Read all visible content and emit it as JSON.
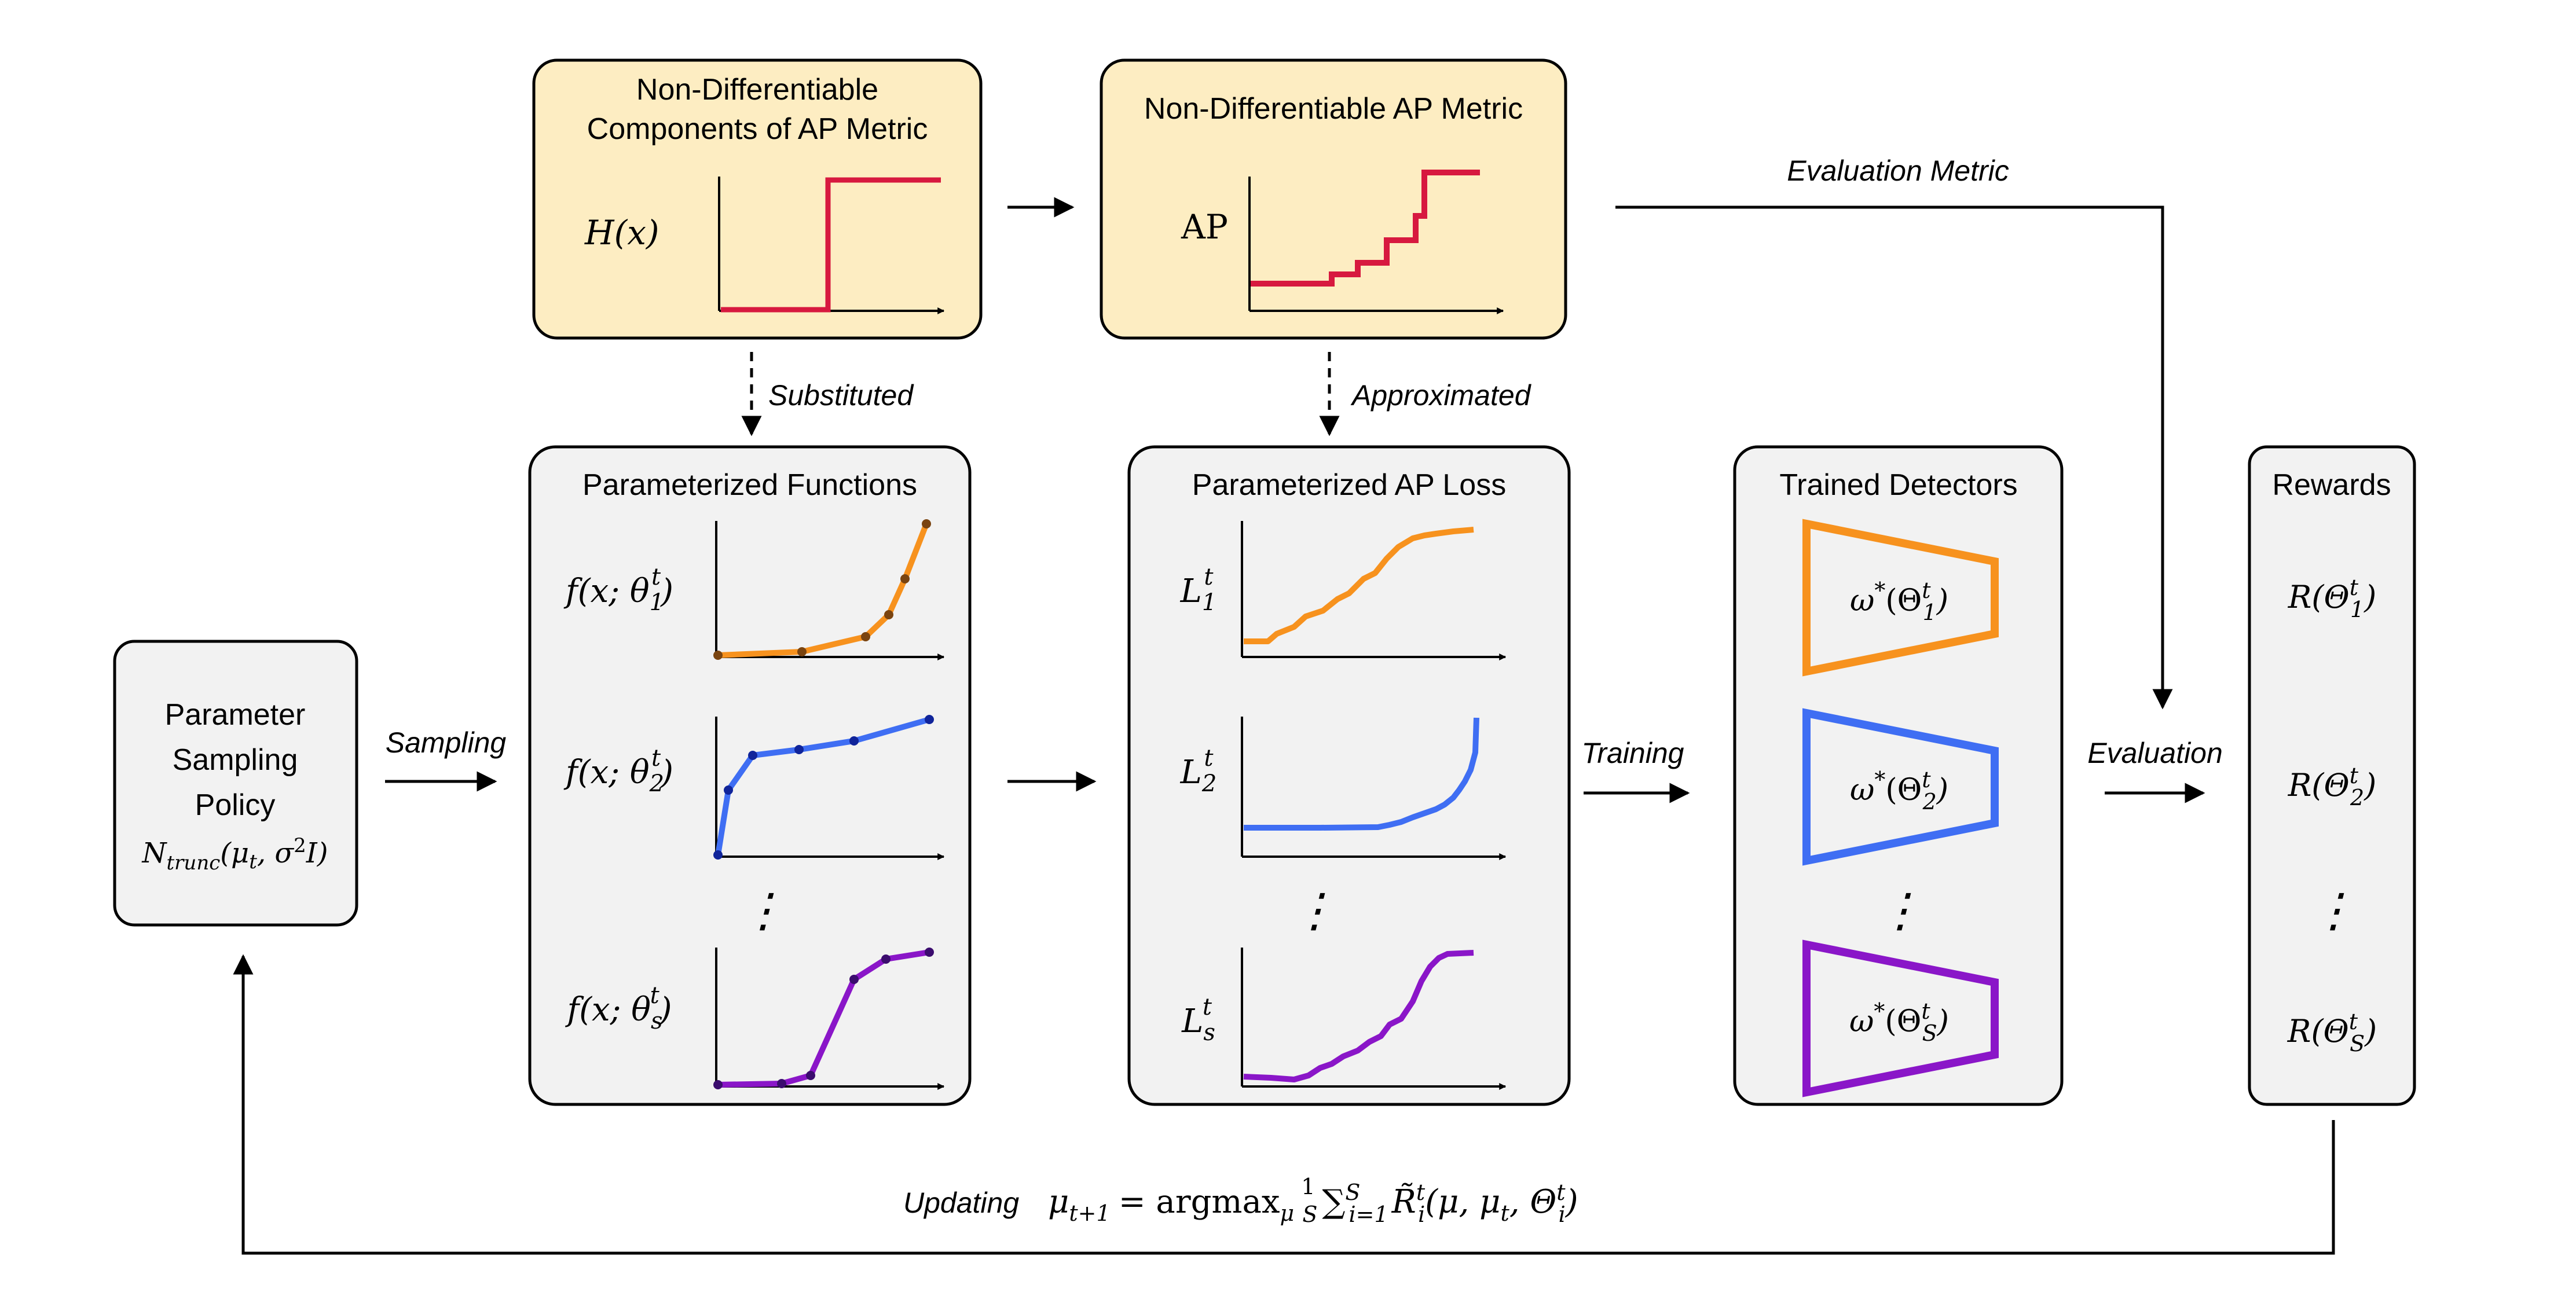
{
  "colors": {
    "yellow_box": "#fdedc2",
    "gray_box": "#f2f2f2",
    "red": "#d7193f",
    "orange": "#f7921e",
    "blue": "#3f6ef3",
    "purple": "#8a16c8"
  },
  "top_boxes": {
    "components": {
      "title_line1": "Non-Differentiable",
      "title_line2": "Components of AP Metric",
      "ylabel": "H(x)"
    },
    "ap_metric": {
      "title": "Non-Differentiable AP Metric",
      "ylabel": "AP"
    }
  },
  "arrow_labels": {
    "evaluation_metric": "Evaluation Metric",
    "substituted": "Substituted",
    "approximated": "Approximated",
    "sampling": "Sampling",
    "training": "Training",
    "evaluation": "Evaluation",
    "updating": "Updating"
  },
  "policy": {
    "line1": "Parameter",
    "line2": "Sampling",
    "line3": "Policy",
    "dist_base": "N",
    "dist_sub": "trunc",
    "dist_args": "(μ",
    "dist_args_sub": "t",
    "dist_args2": ", σ",
    "dist_sup": "2",
    "dist_args3": "I)"
  },
  "param_functions": {
    "title": "Parameterized Functions",
    "labels": [
      {
        "pre": "f(x; θ",
        "sup": "t",
        "sub": "1",
        "post": ")"
      },
      {
        "pre": "f(x; θ",
        "sup": "t",
        "sub": "2",
        "post": ")"
      },
      {
        "pre": "f(x; θ",
        "sup": "t",
        "sub": "s",
        "post": ")"
      }
    ]
  },
  "ap_loss": {
    "title": "Parameterized AP Loss",
    "labels": [
      {
        "pre": "L",
        "sup": "t",
        "sub": "1"
      },
      {
        "pre": "L",
        "sup": "t",
        "sub": "2"
      },
      {
        "pre": "L",
        "sup": "t",
        "sub": "s"
      }
    ]
  },
  "detectors": {
    "title": "Trained Detectors",
    "labels": [
      {
        "pre": "ω",
        "sup": "*",
        "mid": "(Θ",
        "sup2": "t",
        "sub2": "1",
        "post": ")"
      },
      {
        "pre": "ω",
        "sup": "*",
        "mid": "(Θ",
        "sup2": "t",
        "sub2": "2",
        "post": ")"
      },
      {
        "pre": "ω",
        "sup": "*",
        "mid": "(Θ",
        "sup2": "t",
        "sub2": "S",
        "post": ")"
      }
    ]
  },
  "rewards": {
    "title": "Rewards",
    "labels": [
      {
        "pre": "R(Θ",
        "sup": "t",
        "sub": "1",
        "post": ")"
      },
      {
        "pre": "R(Θ",
        "sup": "t",
        "sub": "2",
        "post": ")"
      },
      {
        "pre": "R(Θ",
        "sup": "t",
        "sub": "S",
        "post": ")"
      }
    ]
  },
  "update_formula": {
    "mu": "μ",
    "mu_sub": "t+1",
    "eq": "= argmax",
    "argmax_sub": "μ",
    "frac_num": "1",
    "frac_den": "S",
    "sum": "∑",
    "sum_sup": "S",
    "sum_sub": "i=1",
    "R": "R̃",
    "R_sup": "t",
    "R_sub": "i",
    "args": "(μ, μ",
    "args_sub": "t",
    "args2": ", Θ",
    "args2_sup": "t",
    "args2_sub": "i",
    "close": ")"
  },
  "ellipsis": "⋮"
}
